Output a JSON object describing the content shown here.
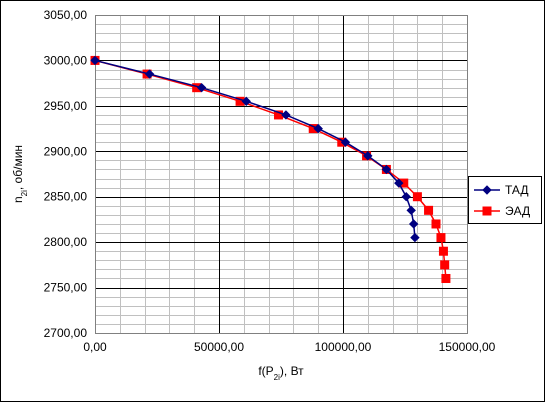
{
  "chart_data": {
    "type": "line",
    "xlabel": "f(P2i), Вт",
    "xlabel_main": "f(P",
    "xlabel_sub": "2i",
    "xlabel_tail": "), Вт",
    "ylabel": "n2i, об/мин",
    "ylabel_main": "n",
    "ylabel_sub": "2i",
    "ylabel_tail": ", об/мин",
    "xlim": [
      0,
      150000
    ],
    "ylim": [
      2700,
      3050
    ],
    "x_ticks": [
      0,
      50000,
      100000,
      150000
    ],
    "x_tick_labels": [
      "0,00",
      "50000,00",
      "100000,00",
      "150000,00"
    ],
    "y_ticks": [
      2700,
      2750,
      2800,
      2850,
      2900,
      2950,
      3000,
      3050
    ],
    "y_tick_labels": [
      "2700,00",
      "2750,00",
      "2800,00",
      "2850,00",
      "2900,00",
      "2950,00",
      "3000,00",
      "3050,00"
    ],
    "y_minor_step": 10,
    "x_minor_step": 10000,
    "grid": true,
    "legend_position": "right",
    "series": [
      {
        "name": "ТАД",
        "color": "#000080",
        "marker": "diamond",
        "points": [
          [
            0,
            3000
          ],
          [
            22000,
            2985
          ],
          [
            43000,
            2970
          ],
          [
            61000,
            2955
          ],
          [
            77000,
            2940
          ],
          [
            90000,
            2925
          ],
          [
            101000,
            2910
          ],
          [
            110000,
            2895
          ],
          [
            117500,
            2880
          ],
          [
            122500,
            2865
          ],
          [
            125500,
            2850
          ],
          [
            127500,
            2835
          ],
          [
            128500,
            2820
          ],
          [
            129000,
            2805
          ]
        ]
      },
      {
        "name": "ЭАД",
        "color": "#ff0000",
        "marker": "square",
        "points": [
          [
            0,
            3000
          ],
          [
            21000,
            2985
          ],
          [
            41000,
            2970
          ],
          [
            58500,
            2955
          ],
          [
            74000,
            2940
          ],
          [
            88000,
            2925
          ],
          [
            99500,
            2910
          ],
          [
            109500,
            2895
          ],
          [
            117500,
            2880
          ],
          [
            124500,
            2865
          ],
          [
            130000,
            2850
          ],
          [
            134500,
            2835
          ],
          [
            137500,
            2820
          ],
          [
            139500,
            2805
          ],
          [
            140500,
            2790
          ],
          [
            141000,
            2775
          ],
          [
            141500,
            2760
          ]
        ]
      }
    ]
  }
}
